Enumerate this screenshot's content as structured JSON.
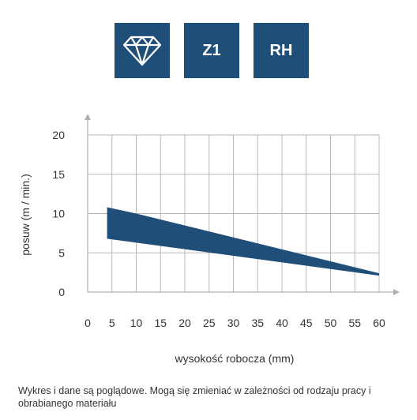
{
  "badges": [
    {
      "label": "",
      "icon": "diamond-icon"
    },
    {
      "label": "Z1"
    },
    {
      "label": "RH"
    }
  ],
  "colors": {
    "badge": "#1f4e79",
    "band": "#1f4e79",
    "grid": "#b8b8b8",
    "axis": "#b0b0b0",
    "text": "#333333"
  },
  "chart_data": {
    "type": "area",
    "title": "",
    "xlabel": "wysokość robocza (mm)",
    "ylabel": "posuw (m / min.)",
    "xlim": [
      0,
      60
    ],
    "ylim": [
      0,
      20
    ],
    "xticks": [
      0,
      5,
      10,
      15,
      20,
      25,
      30,
      35,
      40,
      45,
      50,
      55,
      60
    ],
    "yticks": [
      0,
      5,
      10,
      15,
      20
    ],
    "grid": true,
    "series": [
      {
        "upper": [
          {
            "x": 4,
            "y": 10.8
          },
          {
            "x": 10,
            "y": 10
          },
          {
            "x": 60,
            "y": 2.4
          }
        ],
        "lower": [
          {
            "x": 4,
            "y": 6.8
          },
          {
            "x": 60,
            "y": 2.1
          }
        ]
      }
    ]
  },
  "footnote": "Wykres i dane są poglądowe. Mogą się zmieniać w zależności od rodzaju pracy i obrabianego materiału"
}
